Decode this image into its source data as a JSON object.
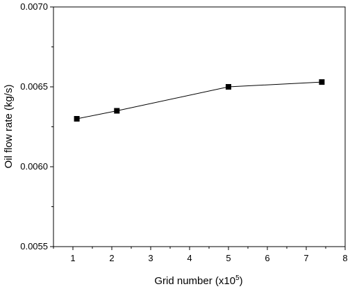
{
  "chart_data": {
    "type": "line",
    "title": "",
    "xlabel": "Grid number (x10",
    "xlabel_superscript": "5",
    "xlabel_suffix": ")",
    "ylabel": "Oil flow rate (kg/s)",
    "xlim": [
      0.5,
      8
    ],
    "ylim": [
      0.0055,
      0.007
    ],
    "x_ticks": [
      "1",
      "2",
      "3",
      "4",
      "5",
      "6",
      "7",
      "8"
    ],
    "y_ticks": [
      "0.0055",
      "0.0060",
      "0.0065",
      "0.0070"
    ],
    "grid": false,
    "series": [
      {
        "marker": "square",
        "color": "#000000",
        "x": [
          1.1,
          2.13,
          5.0,
          7.4
        ],
        "y": [
          0.0063,
          0.00635,
          0.0065,
          0.00653
        ]
      }
    ]
  }
}
